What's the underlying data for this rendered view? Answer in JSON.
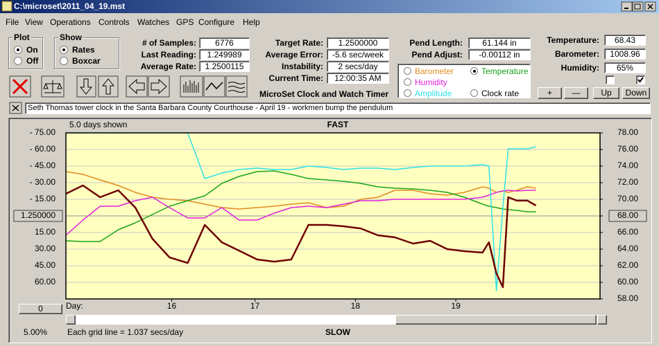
{
  "window": {
    "title": "C:\\microset\\2011_04_19.mst"
  },
  "menu": [
    "File",
    "View",
    "Operations",
    "Controls",
    "Watches",
    "GPS",
    "Configure",
    "Help"
  ],
  "plot": {
    "label": "Plot",
    "options": [
      "On",
      "Off"
    ],
    "selected": 0
  },
  "show": {
    "label": "Show",
    "options": [
      "Rates",
      "Boxcar"
    ],
    "selected": 0
  },
  "fields": [
    {
      "label": "# of Samples:",
      "value": "6776"
    },
    {
      "label": "Last Reading:",
      "value": "1.249989"
    },
    {
      "label": "Average Rate:",
      "value": "1.2500115"
    },
    {
      "label": "Target Rate:",
      "value": "1.2500000"
    },
    {
      "label": "Average Error:",
      "value": "-5.6 sec/week"
    },
    {
      "label": "Instability:",
      "value": "2 secs/day"
    },
    {
      "label": "Current Time:",
      "value": "12:00:35 AM"
    },
    {
      "label": "Pend Length:",
      "value": "61.144 in"
    },
    {
      "label": "Pend Adjust:",
      "value": "-0.00112 in"
    },
    {
      "label": "Temperature:",
      "value": "68.43"
    },
    {
      "label": "Barometer:",
      "value": "1008.96"
    },
    {
      "label": "Humidity:",
      "value": "65%"
    }
  ],
  "app_title": "MicroSet Clock and Watch Timer",
  "checkboxes": [
    false,
    true
  ],
  "buttons": [
    "+",
    "—",
    "Up",
    "Down"
  ],
  "note": "Seth Thomas tower clock in the Santa Barbara County Courthouse - April 19 - workmen bump the pendulum",
  "chart_data": {
    "type": "line",
    "top_label": "FAST",
    "bottom_label": "SLOW",
    "span_label": "5.0 days shown",
    "x_label": "Day:",
    "grid_note": "Each grid line = 1.037 secs/day",
    "zoom": "5.00%",
    "offset": "0",
    "x": [
      15.0,
      15.16,
      15.32,
      15.49,
      15.65,
      15.81,
      15.97,
      16.14,
      16.3,
      16.46,
      16.62,
      16.79,
      16.95,
      17.11,
      17.27,
      17.44,
      17.6,
      17.76,
      17.92,
      18.08,
      18.25,
      18.41,
      18.57,
      18.73,
      18.9,
      18.96,
      19.03,
      19.09,
      19.14,
      19.22,
      19.32,
      19.4
    ],
    "xlim": [
      15,
      20
    ],
    "xticks": [
      {
        "value": 15.99,
        "label": "16"
      },
      {
        "value": 16.77,
        "label": "17"
      },
      {
        "value": 17.71,
        "label": "18"
      },
      {
        "value": 18.65,
        "label": "19"
      }
    ],
    "ylim": [
      -75,
      75
    ],
    "yticks": [
      {
        "value": 75,
        "label": "-  75.00"
      },
      {
        "value": 60,
        "label": "-  60.00"
      },
      {
        "value": 45,
        "label": "-  45.00"
      },
      {
        "value": 30,
        "label": "-  30.00"
      },
      {
        "value": 15,
        "label": "-  15.00"
      },
      {
        "value": 0,
        "label": "1.250000"
      },
      {
        "value": -15,
        "label": "15.00"
      },
      {
        "value": -30,
        "label": "30.00"
      },
      {
        "value": -45,
        "label": "45.00"
      },
      {
        "value": -60,
        "label": "60.00"
      },
      {
        "value": -75,
        "label": ""
      }
    ],
    "y2lim": [
      58,
      78
    ],
    "y2ticks": [
      {
        "value": 78,
        "label": "78.00"
      },
      {
        "value": 76,
        "label": "76.00"
      },
      {
        "value": 74,
        "label": "74.00"
      },
      {
        "value": 72,
        "label": "72.00"
      },
      {
        "value": 70,
        "label": "70.00"
      },
      {
        "value": 68,
        "label": "68.00"
      },
      {
        "value": 66,
        "label": "66.00"
      },
      {
        "value": 64,
        "label": "64.00"
      },
      {
        "value": 62,
        "label": "62.00"
      },
      {
        "value": 60,
        "label": "60.00"
      },
      {
        "value": 58,
        "label": "58.00"
      }
    ],
    "grid": true,
    "series": [
      {
        "name": "Barometer",
        "color": "#e08a1e",
        "axis": "y2",
        "values": [
          73.33,
          73.0,
          72.33,
          71.67,
          70.83,
          70.25,
          70.0,
          69.83,
          69.42,
          69.0,
          68.83,
          69.0,
          69.17,
          69.42,
          69.58,
          69.0,
          69.17,
          70.0,
          70.25,
          71.08,
          71.08,
          70.67,
          70.5,
          70.83,
          71.5,
          71.33,
          70.83,
          71.0,
          70.83,
          71.08,
          71.5,
          71.33
        ]
      },
      {
        "name": "Temperature",
        "color": "#1aa31a",
        "axis": "y2",
        "selected": true,
        "values": [
          65.0,
          64.92,
          64.92,
          66.33,
          67.17,
          68.17,
          69.17,
          69.83,
          70.42,
          71.92,
          72.75,
          73.33,
          73.42,
          73.0,
          72.5,
          72.33,
          72.17,
          71.92,
          71.5,
          71.33,
          71.25,
          71.08,
          70.83,
          70.25,
          69.42,
          69.17,
          69.0,
          68.83,
          68.75,
          68.67,
          68.5,
          68.5
        ]
      },
      {
        "name": "Humidity",
        "color": "#e020e0",
        "axis": "y2",
        "values": [
          65.67,
          67.5,
          69.17,
          69.17,
          69.83,
          70.25,
          69.0,
          67.75,
          67.75,
          69.0,
          67.5,
          67.5,
          68.33,
          69.0,
          69.17,
          69.0,
          69.42,
          69.83,
          69.83,
          70.0,
          70.0,
          70.0,
          70.0,
          70.0,
          70.25,
          70.5,
          70.83,
          71.0,
          71.08,
          71.0,
          71.08,
          71.08
        ]
      },
      {
        "name": "Amplitude",
        "color": "#30e0e8",
        "axis": "y2",
        "values": [
          78,
          78,
          78,
          78,
          78,
          78,
          78,
          78,
          72.5,
          73.17,
          73.58,
          73.75,
          73.58,
          73.58,
          74.0,
          73.83,
          73.58,
          73.75,
          73.75,
          73.58,
          73.83,
          74.0,
          74.0,
          74.0,
          74.17,
          74.0,
          59.0,
          69.0,
          76.08,
          76.08,
          76.08,
          76.33
        ]
      },
      {
        "name": "Clock rate",
        "color": "#6e0000",
        "axis": "y",
        "values": [
          20.0,
          27.5,
          16.9,
          23.1,
          7.5,
          -20.6,
          -37.5,
          -42.5,
          -8.1,
          -23.8,
          -31.3,
          -39.4,
          -41.3,
          -39.4,
          -8.1,
          -8.1,
          -9.4,
          -11.3,
          -17.5,
          -19.4,
          -25.0,
          -22.5,
          -30.0,
          -31.9,
          -33.1,
          -23.8,
          -51.9,
          -64.4,
          16.9,
          13.8,
          13.8,
          9.4
        ]
      }
    ]
  }
}
